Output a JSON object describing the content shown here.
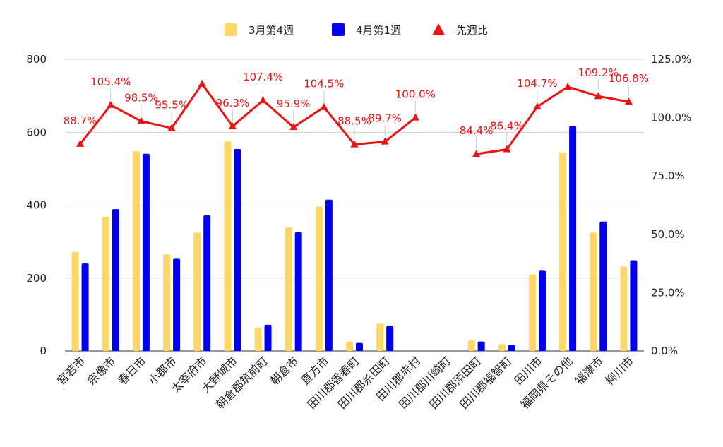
{
  "chart_data": {
    "type": "bar",
    "title": "",
    "xlabel": "",
    "ylabel": "",
    "categories": [
      "宮若市",
      "宗像市",
      "春日市",
      "小郡市",
      "太宰府市",
      "大野城市",
      "朝倉郡筑前町",
      "朝倉市",
      "直方市",
      "田川郡香春町",
      "田川郡糸田町",
      "田川郡赤村",
      "田川郡川崎町",
      "田川郡添田町",
      "田川郡福智町",
      "田川市",
      "福岡県その他",
      "福津市",
      "柳川市"
    ],
    "series": [
      {
        "name": "3月第4週",
        "kind": "bar",
        "axis": "left",
        "color": "#fdd868",
        "values": [
          272,
          368,
          548,
          265,
          325,
          575,
          65,
          339,
          396,
          25,
          75,
          null,
          null,
          30,
          19,
          210,
          545,
          325,
          232
        ]
      },
      {
        "name": "4月第1週",
        "kind": "bar",
        "axis": "left",
        "color": "#0000ee",
        "values": [
          240,
          389,
          541,
          253,
          372,
          554,
          72,
          326,
          415,
          22,
          69,
          null,
          null,
          26,
          16,
          220,
          617,
          355,
          249
        ]
      },
      {
        "name": "先週比",
        "kind": "line",
        "axis": "right",
        "color": "#ee1111",
        "values": [
          88.7,
          105.4,
          98.5,
          95.5,
          114.5,
          96.3,
          107.4,
          95.9,
          104.5,
          88.5,
          89.7,
          100.0,
          null,
          84.4,
          86.4,
          104.7,
          113.2,
          109.2,
          106.8
        ],
        "labels": [
          "88.7%",
          "105.4%",
          "98.5%",
          "95.5%",
          "",
          "96.3%",
          "107.4%",
          "95.9%",
          "104.5%",
          "88.5%",
          "89.7%",
          "100.0%",
          "",
          "84.4%",
          "86.4%",
          "104.7%",
          "",
          "109.2%",
          "106.8%"
        ]
      }
    ],
    "y_left": {
      "min": 0,
      "max": 800,
      "ticks": [
        "0",
        "200",
        "400",
        "600",
        "800"
      ]
    },
    "y_right": {
      "min": 0,
      "max": 125,
      "ticks": [
        "0.0%",
        "25.0%",
        "50.0%",
        "75.0%",
        "100.0%",
        "125.0%"
      ]
    },
    "grid": true,
    "legend": "top-center",
    "legend_items": [
      {
        "label": "3月第4週",
        "color": "#fdd868",
        "marker": "square"
      },
      {
        "label": "4月第1週",
        "color": "#0000ee",
        "marker": "square"
      },
      {
        "label": "先週比",
        "color": "#ee1111",
        "marker": "triangle"
      }
    ]
  }
}
